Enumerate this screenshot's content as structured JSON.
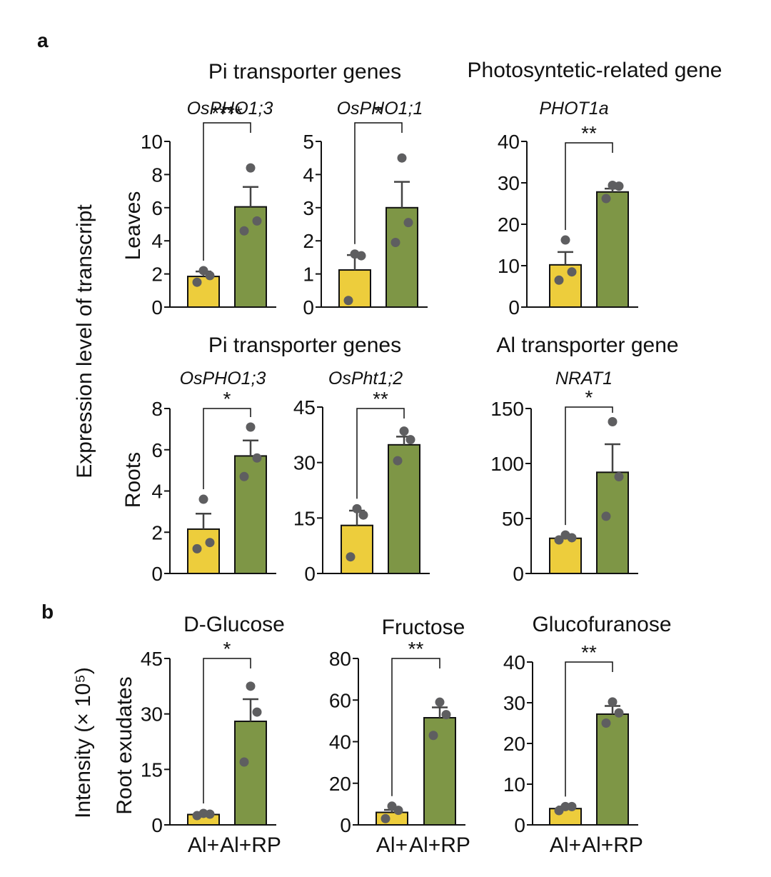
{
  "figure": {
    "panel_a_label": "a",
    "panel_b_label": "b",
    "shared_ylabel_a": "Expression level of transcript",
    "shared_ylabel_b": "Intensity (× 10⁵)",
    "row_labels": [
      "Leaves",
      "Roots",
      "Root exudates"
    ],
    "group_titles": [
      "Pi transporter genes",
      "Photosyntetic-related gene",
      "Pi transporter genes",
      "Al transporter gene"
    ],
    "colors": {
      "Al+": "#EDCD3C",
      "Al+RP": "#7E9646",
      "points": "#5E5E60",
      "axis": "#111111",
      "errorbar": "#444444"
    }
  },
  "chart_data": [
    {
      "type": "bar",
      "title": "OsPHO1;3",
      "categories": [
        "Al+",
        "Al+RP"
      ],
      "values": [
        1.85,
        6.05
      ],
      "errors": [
        0.3,
        1.2
      ],
      "points": [
        [
          1.5,
          1.9,
          2.2
        ],
        [
          4.6,
          5.2,
          8.4
        ]
      ],
      "ylim": [
        0,
        10
      ],
      "yticks": [
        "0",
        "2",
        "4",
        "6",
        "8",
        "10"
      ],
      "significance": "****"
    },
    {
      "type": "bar",
      "title": "OsPHO1;1",
      "categories": [
        "Al+",
        "Al+RP"
      ],
      "values": [
        1.12,
        3.0
      ],
      "errors": [
        0.45,
        0.78
      ],
      "points": [
        [
          0.2,
          1.55,
          1.6
        ],
        [
          1.95,
          2.55,
          4.5
        ]
      ],
      "ylim": [
        0,
        5
      ],
      "yticks": [
        "0",
        "1",
        "2",
        "3",
        "4",
        "5"
      ],
      "significance": "*"
    },
    {
      "type": "bar",
      "title": "PHOT1a",
      "categories": [
        "Al+",
        "Al+RP"
      ],
      "values": [
        10.2,
        27.8
      ],
      "errors": [
        3.1,
        0.8
      ],
      "points": [
        [
          6.5,
          8.5,
          16.2
        ],
        [
          26.2,
          29.2,
          29.4
        ]
      ],
      "ylim": [
        0,
        40
      ],
      "yticks": [
        "0",
        "10",
        "20",
        "30",
        "40"
      ],
      "significance": "**"
    },
    {
      "type": "bar",
      "title": "OsPHO1;3",
      "categories": [
        "Al+",
        "Al+RP"
      ],
      "values": [
        2.15,
        5.7
      ],
      "errors": [
        0.75,
        0.75
      ],
      "points": [
        [
          1.2,
          1.5,
          3.6
        ],
        [
          4.7,
          5.6,
          7.1
        ]
      ],
      "ylim": [
        0,
        8
      ],
      "yticks": [
        "0",
        "2",
        "4",
        "6",
        "8"
      ],
      "significance": "*"
    },
    {
      "type": "bar",
      "title": "OsPht1;2",
      "categories": [
        "Al+",
        "Al+RP"
      ],
      "values": [
        13.0,
        34.8
      ],
      "errors": [
        4.0,
        2.2
      ],
      "points": [
        [
          4.5,
          15.8,
          17.5
        ],
        [
          30.5,
          36.2,
          38.5
        ]
      ],
      "ylim": [
        0,
        45
      ],
      "yticks": [
        "0",
        "15",
        "30",
        "45"
      ],
      "significance": "**"
    },
    {
      "type": "bar",
      "title": "NRAT1",
      "categories": [
        "Al+",
        "Al+RP"
      ],
      "values": [
        32.0,
        92.0
      ],
      "errors": [
        1.5,
        25.5
      ],
      "points": [
        [
          30.5,
          32.5,
          35.0
        ],
        [
          52.0,
          88.0,
          138.0
        ]
      ],
      "ylim": [
        0,
        150
      ],
      "yticks": [
        "0",
        "50",
        "100",
        "150"
      ],
      "significance": "*"
    },
    {
      "type": "bar",
      "title": "D-Glucose",
      "categories": [
        "Al+",
        "Al+RP"
      ],
      "values": [
        2.8,
        28.0
      ],
      "errors": [
        0.3,
        6.0
      ],
      "points": [
        [
          2.5,
          2.9,
          3.1
        ],
        [
          17.0,
          30.5,
          37.5
        ]
      ],
      "ylim": [
        0,
        45
      ],
      "yticks": [
        "0",
        "15",
        "30",
        "45"
      ],
      "significance": "*"
    },
    {
      "type": "bar",
      "title": "Fructose",
      "categories": [
        "Al+",
        "Al+RP"
      ],
      "values": [
        6.0,
        51.5
      ],
      "errors": [
        1.2,
        5.0
      ],
      "points": [
        [
          3.0,
          7.0,
          9.0
        ],
        [
          43.0,
          53.0,
          59.0
        ]
      ],
      "ylim": [
        0,
        80
      ],
      "yticks": [
        "0",
        "20",
        "40",
        "60",
        "80"
      ],
      "significance": "**"
    },
    {
      "type": "bar",
      "title": "Glucofuranose",
      "categories": [
        "Al+",
        "Al+RP"
      ],
      "values": [
        4.0,
        27.2
      ],
      "errors": [
        0.5,
        2.0
      ],
      "points": [
        [
          3.5,
          4.5,
          4.5
        ],
        [
          25.0,
          27.5,
          30.2
        ]
      ],
      "ylim": [
        0,
        40
      ],
      "yticks": [
        "0",
        "10",
        "20",
        "30",
        "40"
      ],
      "significance": "**"
    }
  ]
}
